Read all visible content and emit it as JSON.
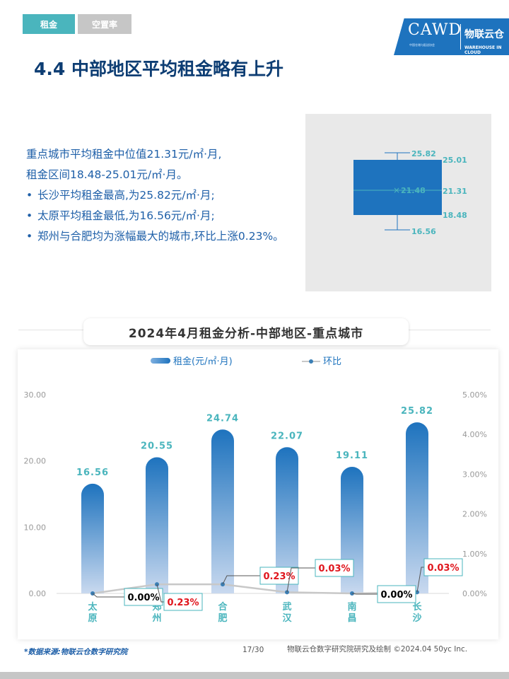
{
  "header": {
    "tabs": [
      {
        "label": "租金",
        "active": true
      },
      {
        "label": "空置率",
        "active": false
      }
    ],
    "logo": {
      "brand": "CAWD",
      "subtitle": "中国仓储与配送协会",
      "cn_name": "物联云仓",
      "en_name": "WAREHOUSE IN CLOUD",
      "color": "#1e73be"
    }
  },
  "title": "4.4 中部地区平均租金略有上升",
  "summary": {
    "intro_line1": "重点城市平均租金中位值21.31元/㎡·月,",
    "intro_line2": "租金区间18.48-25.01元/㎡·月。",
    "bullets": [
      "长沙平均租金最高,为25.82元/㎡·月;",
      "太原平均租金最低,为16.56元/㎡·月;",
      "郑州与合肥均为涨幅最大的城市,环比上涨0.23%。"
    ]
  },
  "boxplot": {
    "max": "25.82",
    "q3": "25.01",
    "mean": "21.48",
    "median": "21.31",
    "q1": "18.48",
    "min": "16.56",
    "box_color": "#1e73be"
  },
  "chart_data": {
    "type": "bar",
    "title": "2024年4月租金分析-中部地区-重点城市",
    "categories": [
      "太原",
      "郑州",
      "合肥",
      "武汉",
      "南昌",
      "长沙"
    ],
    "series": [
      {
        "name": "租金(元/㎡·月)",
        "type": "bar",
        "axis": "left",
        "values": [
          16.56,
          20.55,
          24.74,
          22.07,
          19.11,
          25.82
        ]
      },
      {
        "name": "环比",
        "type": "line",
        "axis": "right",
        "values": [
          0.0,
          0.23,
          0.23,
          0.03,
          0.0,
          0.03
        ]
      }
    ],
    "bar_labels": [
      "16.56",
      "20.55",
      "24.74",
      "22.07",
      "19.11",
      "25.82"
    ],
    "line_labels": [
      "0.00%",
      "0.23%",
      "0.23%",
      "0.03%",
      "0.00%",
      "0.03%"
    ],
    "y_left": {
      "ticks": [
        "0.00",
        "10.00",
        "20.00",
        "30.00"
      ],
      "range": [
        0,
        30
      ]
    },
    "y_right": {
      "ticks": [
        "0.00%",
        "1.00%",
        "2.00%",
        "3.00%",
        "4.00%",
        "5.00%"
      ],
      "range": [
        0,
        5
      ]
    },
    "legend_position": "top-center",
    "grid": false,
    "colors": {
      "bar": "#1e73be",
      "bar_label": "#4ab5bd",
      "line": "#c8c8c8",
      "marker": "#3b7fb5",
      "positive": "#e0161d",
      "zero": "#000000",
      "label_border": "#4ab5bd"
    }
  },
  "footer": {
    "source": "*数据来源:物联云仓数字研究院",
    "page": "17/30",
    "credit": "物联云仓数字研究院研究及绘制 ©2024.04 50yc Inc."
  }
}
